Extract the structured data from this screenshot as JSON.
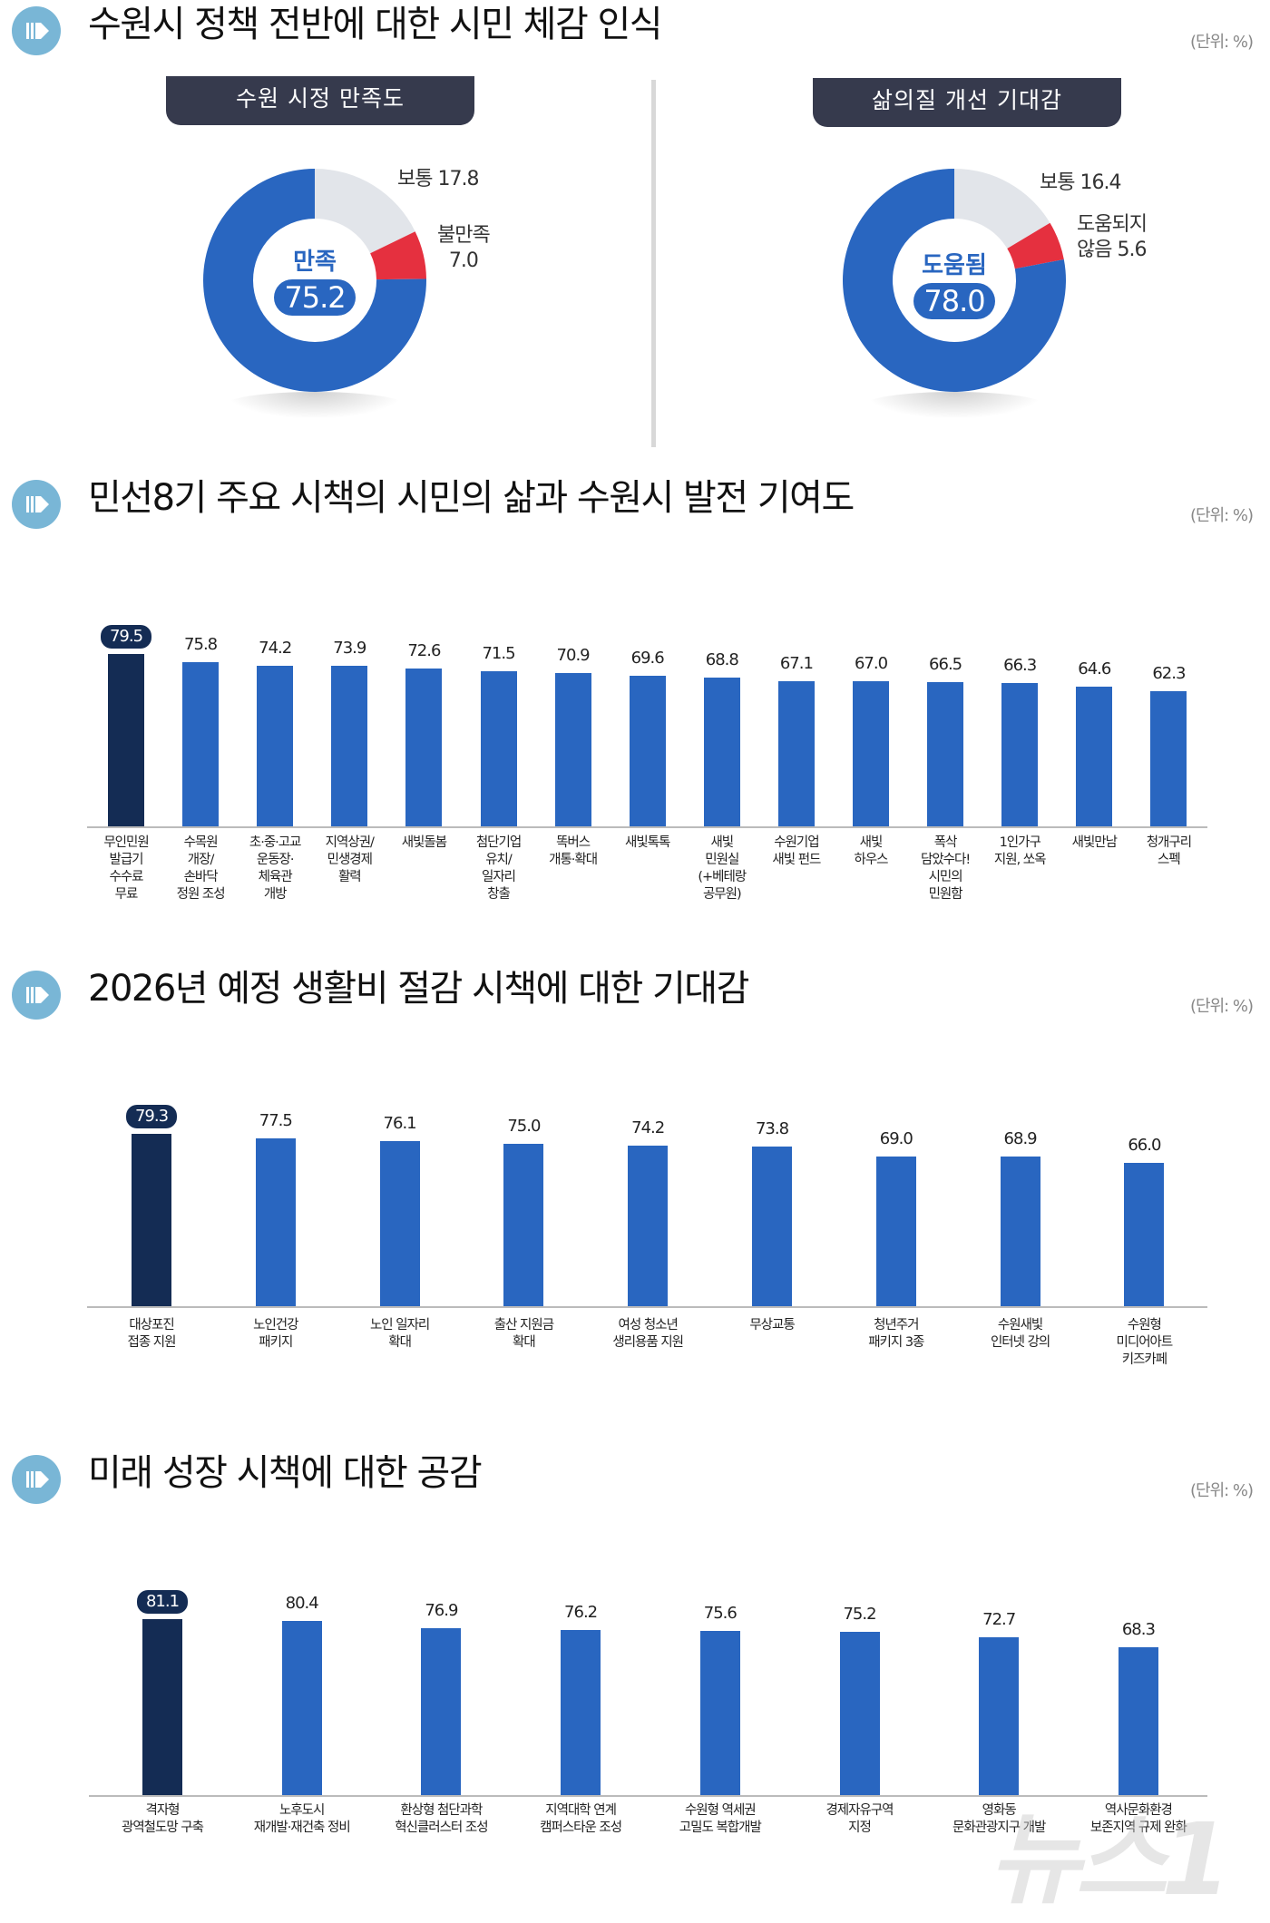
{
  "unit_label": "(단위: %)",
  "watermark": "뉴스1",
  "colors": {
    "bar": "#2966c0",
    "highlight": "#142c54",
    "neutral": "#e2e5ea",
    "negative": "#e5303f",
    "tab": "#363a4d",
    "icon": "#79b6d6"
  },
  "sections": [
    {
      "title": "수원시 정책 전반에 대한 시민 체감 인식"
    },
    {
      "title": "민선8기 주요 시책의 시민의 삶과 수원시 발전 기여도"
    },
    {
      "title": "2026년 예정 생활비 절감 시책에 대한 기대감"
    },
    {
      "title": "미래 성장 시책에 대한 공감"
    }
  ],
  "chart_data": [
    {
      "type": "pie",
      "title": "수원 시정 만족도",
      "center_label": "만족",
      "center_value": "75.2",
      "slices": [
        {
          "name": "보통",
          "value": 17.8,
          "label": "보통 17.8",
          "color": "#e2e5ea"
        },
        {
          "name": "불만족",
          "value": 7.0,
          "label": "불만족\n7.0",
          "color": "#e5303f"
        },
        {
          "name": "만족",
          "value": 75.2,
          "color": "#2966c0"
        }
      ]
    },
    {
      "type": "pie",
      "title": "삶의질 개선 기대감",
      "center_label": "도움됨",
      "center_value": "78.0",
      "slices": [
        {
          "name": "보통",
          "value": 16.4,
          "label": "보통 16.4",
          "color": "#e2e5ea"
        },
        {
          "name": "도움되지 않음",
          "value": 5.6,
          "label": "도움되지\n않음 5.6",
          "color": "#e5303f"
        },
        {
          "name": "도움됨",
          "value": 78.0,
          "color": "#2966c0"
        }
      ]
    },
    {
      "type": "bar",
      "categories": [
        "무인민원\n발급기\n수수료\n무료",
        "수목원\n개장/\n손바닥\n정원 조성",
        "초·중·고교\n운동장·\n체육관\n개방",
        "지역상권/\n민생경제\n활력",
        "새빛돌봄",
        "첨단기업\n유치/\n일자리\n창출",
        "똑버스\n개통·확대",
        "새빛톡톡",
        "새빛\n민원실\n(+베테랑\n공무원)",
        "수원기업\n새빛 펀드",
        "새빛\n하우스",
        "폭삭\n담았수다!\n시민의\n민원함",
        "1인가구\n지원, 쏘옥",
        "새빛만남",
        "청개구리\n스펙"
      ],
      "values": [
        79.5,
        75.8,
        74.2,
        73.9,
        72.6,
        71.5,
        70.9,
        69.6,
        68.8,
        67.1,
        67.0,
        66.5,
        66.3,
        64.6,
        62.3
      ],
      "highlight_index": 0,
      "ylim": [
        0,
        100
      ],
      "grid": false
    },
    {
      "type": "bar",
      "categories": [
        "대상포진\n접종 지원",
        "노인건강\n패키지",
        "노인 일자리\n확대",
        "출산 지원금\n확대",
        "여성 청소년\n생리용품 지원",
        "무상교통",
        "청년주거\n패키지 3종",
        "수원새빛\n인터넷 강의",
        "수원형\n미디어아트\n키즈카페"
      ],
      "values": [
        79.3,
        77.5,
        76.1,
        75.0,
        74.2,
        73.8,
        69.0,
        68.9,
        66.0
      ],
      "highlight_index": 0,
      "ylim": [
        0,
        100
      ],
      "grid": false
    },
    {
      "type": "bar",
      "categories": [
        "격자형\n광역철도망 구축",
        "노후도시\n재개발·재건축 정비",
        "환상형 첨단과학\n혁신클러스터 조성",
        "지역대학 연계\n캠퍼스타운 조성",
        "수원형 역세권\n고밀도 복합개발",
        "경제자유구역\n지정",
        "영화동\n문화관광지구 개발",
        "역사문화환경\n보존지역 규제 완화"
      ],
      "values": [
        81.1,
        80.4,
        76.9,
        76.2,
        75.6,
        75.2,
        72.7,
        68.3
      ],
      "highlight_index": 0,
      "ylim": [
        0,
        100
      ],
      "grid": false
    }
  ]
}
